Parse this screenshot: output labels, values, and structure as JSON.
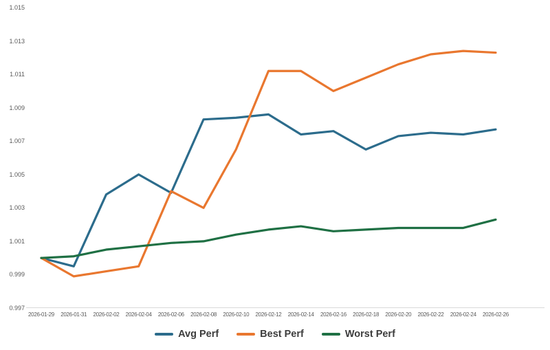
{
  "chart_data": {
    "type": "line",
    "title": "",
    "categories": [
      "2026-01-29",
      "2026-01-31",
      "2026-02-02",
      "2026-02-04",
      "2026-02-06",
      "2026-02-08",
      "2026-02-10",
      "2026-02-12",
      "2026-02-14",
      "2026-02-16",
      "2026-02-18",
      "2026-02-20",
      "2026-02-22",
      "2026-02-24",
      "2026-02-26"
    ],
    "series": [
      {
        "name": "Avg Perf",
        "color": "#2c6c8c",
        "values": [
          1.0,
          0.9995,
          1.0038,
          1.005,
          1.0039,
          1.0083,
          1.0084,
          1.0086,
          1.0074,
          1.0076,
          1.0065,
          1.0073,
          1.0075,
          1.0074,
          1.0077
        ]
      },
      {
        "name": "Best Perf",
        "color": "#e9772f",
        "values": [
          1.0,
          0.9989,
          0.9992,
          0.9995,
          1.004,
          1.003,
          1.0065,
          1.0112,
          1.0112,
          1.01,
          1.0108,
          1.0116,
          1.0122,
          1.0124,
          1.0123
        ]
      },
      {
        "name": "Worst Perf",
        "color": "#1f7044",
        "values": [
          1.0,
          1.0001,
          1.0005,
          1.0007,
          1.0009,
          1.001,
          1.0014,
          1.0017,
          1.0019,
          1.0016,
          1.0017,
          1.0018,
          1.0018,
          1.0018,
          1.0023
        ]
      }
    ],
    "y_axis": {
      "min": 0.997,
      "max": 1.015,
      "step": 0.002,
      "tick_labels": [
        "1.015",
        "1.013",
        "1.011",
        "1.009",
        "1.007",
        "1.005",
        "1.003",
        "1.001",
        "0.999",
        "0.997"
      ]
    },
    "x_axis_line_color": "#d9d9d9",
    "axis_text_color": "#595959",
    "legend_position": "bottom",
    "grid": "none"
  }
}
